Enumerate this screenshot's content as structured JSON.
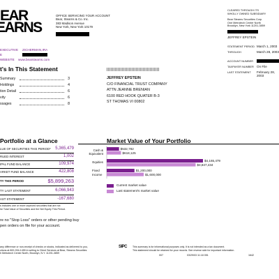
{
  "logo": {
    "line1": "EAR",
    "line2": "EARNS"
  },
  "office": {
    "heading": "OFFICE SERVICING YOUR ACCOUNT",
    "lines": [
      "Bear, Stearns & Co. Inc.",
      "383 Madison Avenue",
      "New York, New York 10179"
    ]
  },
  "clearing": {
    "heading1": "CLEARED THROUGH ITS",
    "heading2": "WHOLLY OWNED SUBSIDIARY",
    "lines": [
      "Bear Stearns Securities Corp.",
      "One Metrotech Center North",
      "Brooklyn, New York 11201-3859"
    ],
    "client_name": "JEFFREY EPSTEIN"
  },
  "statement_meta": {
    "rows": [
      {
        "label": "STATEMENT PERIOD",
        "value": "March 1, 2003"
      },
      {
        "label": "THROUGH",
        "value": "March 28, 2003"
      },
      {
        "label": "ACCOUNT NUMBER",
        "value": ""
      },
      {
        "label": "TAXPAYER NUMBER",
        "value": "On File"
      },
      {
        "label": "LAST STATEMENT",
        "value": "February 28, 2003"
      }
    ]
  },
  "executive": {
    "label": "EXECUTIVE",
    "name": "ZICHERMAN,IRA",
    "phone_label": "E",
    "website_label": "WEBSITE",
    "website": "www.bearstearns.com"
  },
  "toc": {
    "title": "t's In This Statement",
    "items": [
      {
        "label": "Summary",
        "page": "3"
      },
      {
        "label": "Holdings",
        "page": "4"
      },
      {
        "label": "tion Detail",
        "page": "6"
      },
      {
        "label": "vity",
        "page": "6"
      },
      {
        "label": "ssages",
        "page": "8"
      }
    ]
  },
  "address": {
    "lines": [
      "JEFFREY EPSTEIN",
      "C/O FINANCIAL TRUST COMPANY",
      "ATTN JEANNE BRENIAN",
      "6100 RED HOOK QUATER B-3",
      "ST THOMAS VI  00802"
    ]
  },
  "glance": {
    "title": "Portfolio at a Glance",
    "rows": [
      {
        "label": "LUE OF SECURITIES THIS PERIOD*",
        "value": "5,365,479"
      },
      {
        "label": "RUED INTEREST",
        "value": "1,002"
      },
      {
        "label": "IPAL FUND BALANCE",
        "value": "109,974"
      },
      {
        "label": "ARKET FUND BALANCE",
        "value": "422,808"
      }
    ],
    "total_label": "TY  THIS PERIOD",
    "total_value": "$5,899,263",
    "last_rows": [
      {
        "label": "TY LAST STATEMENT",
        "value": "6,066,943"
      },
      {
        "label": "AST STATEMENT",
        "value": "-167,680"
      }
    ],
    "footnote1": "s includes one or more unpriced securities that are not",
    "footnote2": "he Total Value of Securities and the Net Equity This Period."
  },
  "stop_loss": {
    "line1": "re no \"Stop Loss\" orders or other pending buy",
    "line2": "pen orders on file for your account."
  },
  "market_chart": {
    "title": "Market  Value of Your Portfolio"
  },
  "chart_data": {
    "type": "bar",
    "title": "Market  Value of Your Portfolio",
    "categories": [
      "Cash & Equivalent",
      "Equities",
      "Fixed Income"
    ],
    "series": [
      {
        "name": "Current market value",
        "values": [
          532782,
          4165479,
          1200000
        ],
        "labels": [
          "$532,782",
          "$4,165,479",
          "$1,200,000"
        ],
        "color": "#7a1e8e"
      },
      {
        "name": "Last statement's market value",
        "values": [
          618125,
          3847434,
          1600000
        ],
        "labels": [
          "$618,125",
          "$3,847,434",
          "$1,600,000"
        ],
        "color": "#c889d4"
      }
    ],
    "xlim": [
      0,
      4165479
    ]
  },
  "footer": {
    "left1": "any difference or non-receipt of checks or stocks, indicated as delivered to you,",
    "left2": "ctions at 800-934-1455  in writing to Client Services at Bear, Stearns Securities",
    "left3": "h Metrotech Center North, Brooklyn, N.Y. 11201-3859",
    "right1": "This summary is for informational purposes only. It is not intended as a tax document.",
    "right2": "This statement should be retained for your records. See reverse side for important information.",
    "code1": "007",
    "code2": "03/29/03 11:18  051",
    "code3": "1642"
  },
  "colors": {
    "accent": "#7a1e8e",
    "accent_light": "#c889d4"
  }
}
